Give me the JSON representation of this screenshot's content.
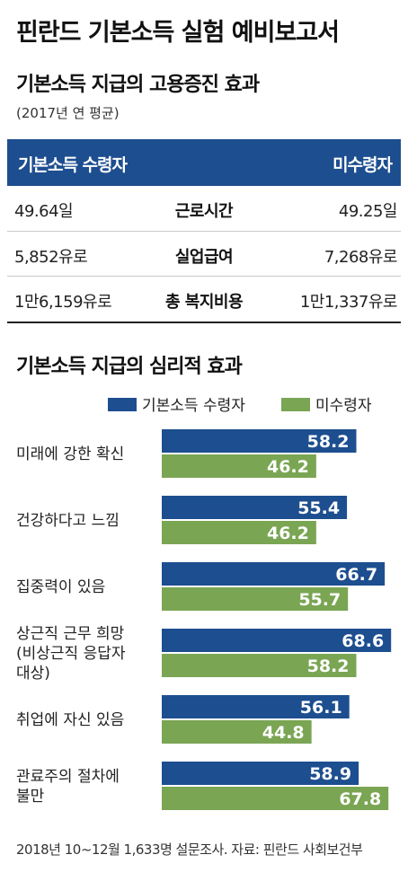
{
  "title": "핀란드 기본소득 실험 예비보고서",
  "section1": {
    "title": "기본소득 지급의 고용증진 효과",
    "note": "(2017년 연 평균)",
    "header_left": "기본소득 수령자",
    "header_right": "미수령자",
    "rows": [
      {
        "left": "49.64일",
        "label": "근로시간",
        "right": "49.25일"
      },
      {
        "left": "5,852유로",
        "label": "실업급여",
        "right": "7,268유로"
      },
      {
        "left": "1만6,159유로",
        "label": "총 복지비용",
        "right": "1만1,337유로"
      }
    ]
  },
  "section2": {
    "title": "기본소득 지급의 심리적 효과"
  },
  "colors": {
    "recipient": "#1d4e8f",
    "non_recipient": "#7aa553"
  },
  "chart_data": {
    "type": "bar",
    "orientation": "horizontal",
    "categories": [
      "미래에 강한 확신",
      "건강하다고 느낌",
      "집중력이 있음",
      "상근직 근무 희망 (비상근직 응답자 대상)",
      "취업에 자신 있음",
      "관료주의 절차에 불만"
    ],
    "category_lines": [
      [
        "미래에 강한 확신"
      ],
      [
        "건강하다고 느낌"
      ],
      [
        "집중력이 있음"
      ],
      [
        "상근직 근무 희망",
        "(비상근직 응답자",
        "대상)"
      ],
      [
        "취업에 자신 있음"
      ],
      [
        "관료주의 절차에",
        "불만"
      ]
    ],
    "series": [
      {
        "name": "기본소득 수령자",
        "values": [
          58.2,
          55.4,
          66.7,
          68.6,
          56.1,
          58.9
        ]
      },
      {
        "name": "미수령자",
        "values": [
          46.2,
          46.2,
          55.7,
          58.2,
          44.8,
          67.8
        ]
      }
    ],
    "legend_position": "top-right",
    "grid": false
  },
  "footer": "2018년 10~12월 1,633명 설문조사. 자료: 핀란드 사회보건부"
}
